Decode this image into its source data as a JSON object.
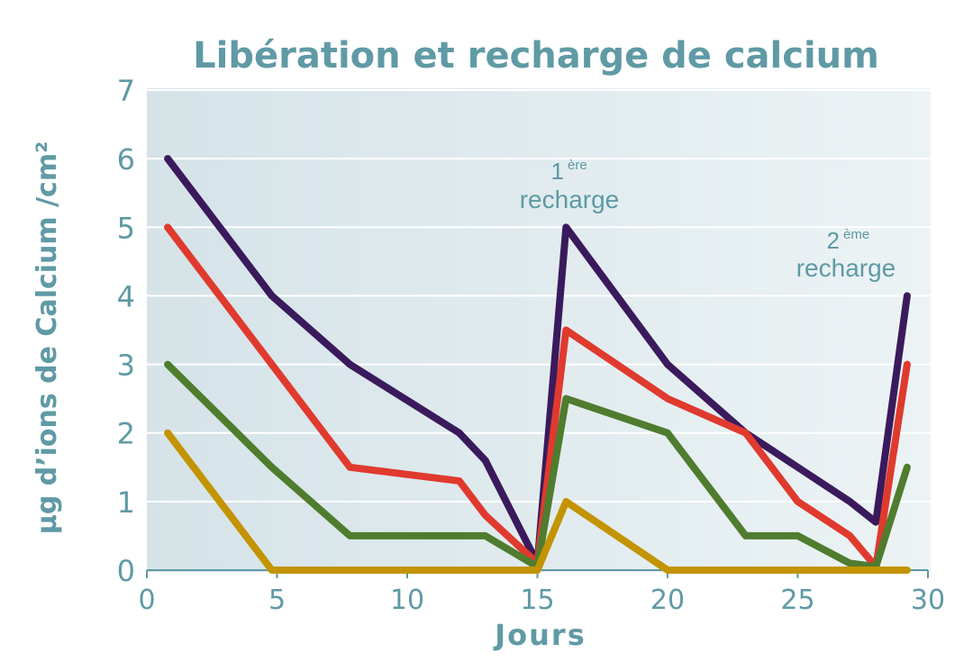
{
  "chart_data": {
    "type": "line",
    "title": "Libération et recharge de calcium",
    "xlabel": "Jours",
    "ylabel": "µg d’ions de Calcium /cm²",
    "xlim": [
      0,
      30
    ],
    "ylim": [
      0,
      7
    ],
    "xticks": [
      "0",
      "5",
      "10",
      "15",
      "20",
      "25",
      "30"
    ],
    "yticks": [
      "0",
      "1",
      "2",
      "3",
      "4",
      "5",
      "6",
      "7"
    ],
    "grid": true,
    "colors": {
      "plot_bg_left": "#d5e3e8",
      "plot_bg_right": "#ecf3f5",
      "text": "#5f9aa5",
      "grid": "#ffffff"
    },
    "series": [
      {
        "name": "purple",
        "color": "#3a1a5c",
        "points": [
          [
            0.8,
            6.0
          ],
          [
            4.8,
            4.0
          ],
          [
            7.8,
            3.0
          ],
          [
            12.0,
            2.0
          ],
          [
            13.0,
            1.6
          ],
          [
            15.0,
            0.1
          ],
          [
            16.1,
            5.0
          ],
          [
            20.0,
            3.0
          ],
          [
            23.0,
            2.0
          ],
          [
            27.0,
            1.0
          ],
          [
            28.0,
            0.7
          ],
          [
            29.2,
            4.0
          ]
        ]
      },
      {
        "name": "red",
        "color": "#e03a2e",
        "points": [
          [
            0.8,
            5.0
          ],
          [
            4.8,
            3.0
          ],
          [
            7.8,
            1.5
          ],
          [
            12.0,
            1.3
          ],
          [
            13.0,
            0.8
          ],
          [
            15.0,
            0.1
          ],
          [
            16.1,
            3.5
          ],
          [
            20.0,
            2.5
          ],
          [
            23.0,
            2.0
          ],
          [
            25.0,
            1.0
          ],
          [
            27.0,
            0.5
          ],
          [
            28.0,
            0.05
          ],
          [
            29.2,
            3.0
          ]
        ]
      },
      {
        "name": "green",
        "color": "#4f7c2e",
        "points": [
          [
            0.8,
            3.0
          ],
          [
            4.8,
            1.5
          ],
          [
            7.8,
            0.5
          ],
          [
            13.0,
            0.5
          ],
          [
            15.0,
            0.05
          ],
          [
            16.1,
            2.5
          ],
          [
            20.0,
            2.0
          ],
          [
            23.0,
            0.5
          ],
          [
            25.0,
            0.5
          ],
          [
            27.0,
            0.1
          ],
          [
            28.0,
            0.05
          ],
          [
            29.2,
            1.5
          ]
        ]
      },
      {
        "name": "gold",
        "color": "#c39400",
        "points": [
          [
            0.8,
            2.0
          ],
          [
            4.8,
            0.0
          ],
          [
            15.0,
            0.0
          ],
          [
            16.1,
            1.0
          ],
          [
            20.0,
            0.0
          ],
          [
            29.2,
            0.0
          ]
        ]
      }
    ],
    "annotations": [
      {
        "id": "first",
        "number": "1",
        "superscript": "ère",
        "word": "recharge"
      },
      {
        "id": "second",
        "number": "2",
        "superscript": "ème",
        "word": "recharge"
      }
    ]
  }
}
